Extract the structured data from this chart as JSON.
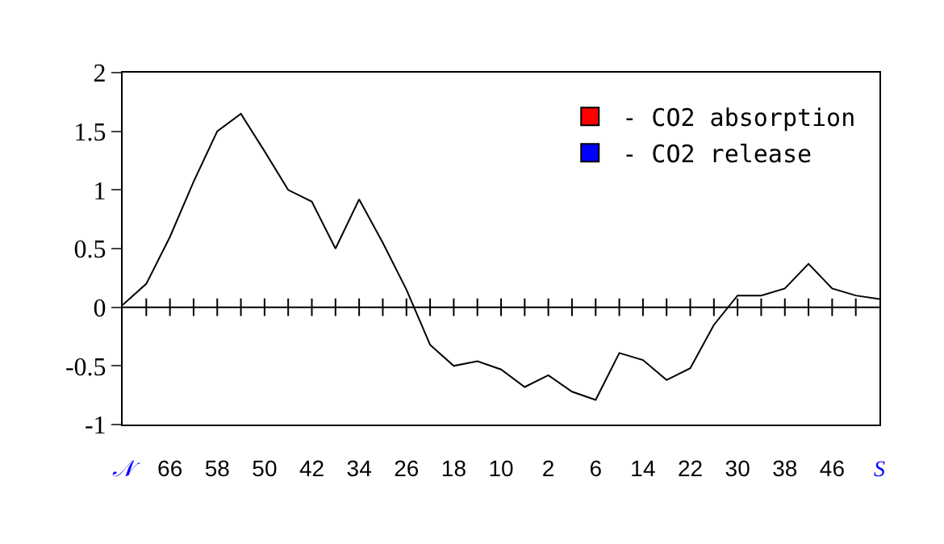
{
  "chart_data": {
    "type": "line",
    "categories": [
      "𝒩",
      null,
      "66",
      null,
      "58",
      null,
      "50",
      null,
      "42",
      null,
      "34",
      null,
      "26",
      null,
      "18",
      null,
      "10",
      null,
      "2",
      null,
      "6",
      null,
      "14",
      null,
      "22",
      null,
      "30",
      null,
      "38",
      null,
      "46",
      null,
      "S"
    ],
    "series": [
      {
        "color": "#000000",
        "values": [
          0.02,
          0.2,
          0.6,
          1.07,
          1.5,
          1.65,
          1.33,
          1.0,
          0.9,
          0.5,
          0.92,
          0.55,
          0.15,
          -0.32,
          -0.5,
          -0.46,
          -0.53,
          -0.68,
          -0.58,
          -0.72,
          -0.79,
          -0.39,
          -0.45,
          -0.62,
          -0.52,
          -0.15,
          0.1,
          0.1,
          0.16,
          0.37,
          0.16,
          0.1,
          0.07
        ]
      },
      {
        "type": "scatter",
        "name": "- CO2 absorption",
        "color": "#ff0000",
        "marker": "square",
        "values": [
          null,
          null,
          null,
          null,
          null,
          null,
          null,
          null,
          null,
          null,
          null,
          null,
          null,
          null,
          null,
          null,
          null,
          null,
          null,
          null,
          null,
          null,
          null,
          null,
          null,
          null,
          null,
          null,
          null,
          null,
          null,
          null,
          null
        ]
      },
      {
        "type": "scatter",
        "name": "- CO2 release",
        "color": "#0000ff",
        "marker": "square",
        "values": [
          null,
          null,
          null,
          null,
          null,
          null,
          null,
          null,
          null,
          null,
          null,
          null,
          null,
          null,
          null,
          null,
          null,
          null,
          null,
          null,
          null,
          null,
          null,
          null,
          null,
          null,
          null,
          null,
          null,
          null,
          null,
          null,
          null
        ]
      }
    ],
    "ylim": [
      -1,
      2
    ],
    "yticks": [
      2,
      1.5,
      1,
      0.5,
      0,
      -0.5,
      -1
    ],
    "ref_lines": [
      {
        "axis": "y",
        "value": 0
      }
    ],
    "legend": "top right",
    "marker": "none",
    "line_style": "solid"
  }
}
